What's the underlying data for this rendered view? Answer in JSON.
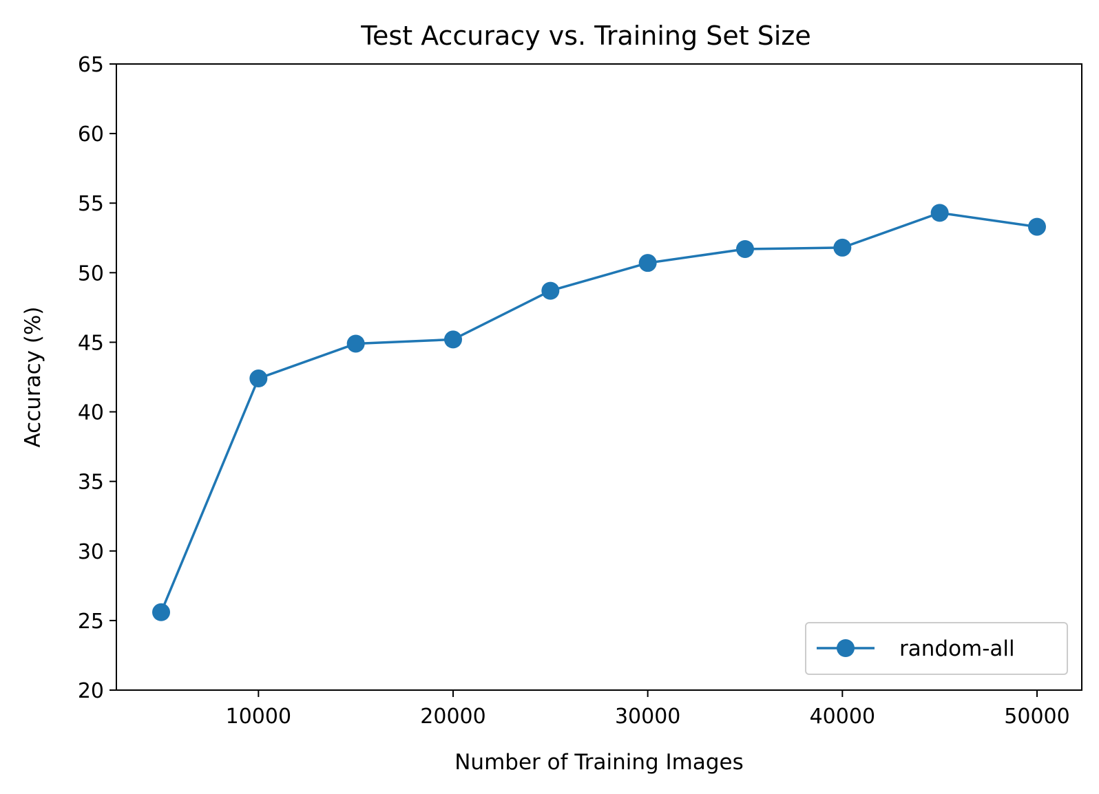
{
  "chart_data": {
    "type": "line",
    "title": "Test Accuracy vs. Training Set Size",
    "xlabel": "Number of Training Images",
    "ylabel": "Accuracy (%)",
    "xlim": [
      2700,
      52300
    ],
    "ylim": [
      20,
      65
    ],
    "xticks": [
      10000,
      20000,
      30000,
      40000,
      50000
    ],
    "yticks": [
      20,
      25,
      30,
      35,
      40,
      45,
      50,
      55,
      60,
      65
    ],
    "grid": false,
    "legend_position": "lower-right",
    "series": [
      {
        "name": "random-all",
        "color": "#1f77b4",
        "marker": "circle",
        "x": [
          5000,
          10000,
          15000,
          20000,
          25000,
          30000,
          35000,
          40000,
          45000,
          50000
        ],
        "y": [
          25.6,
          42.4,
          44.9,
          45.2,
          48.7,
          50.7,
          51.7,
          51.8,
          54.3,
          53.3
        ]
      }
    ]
  }
}
